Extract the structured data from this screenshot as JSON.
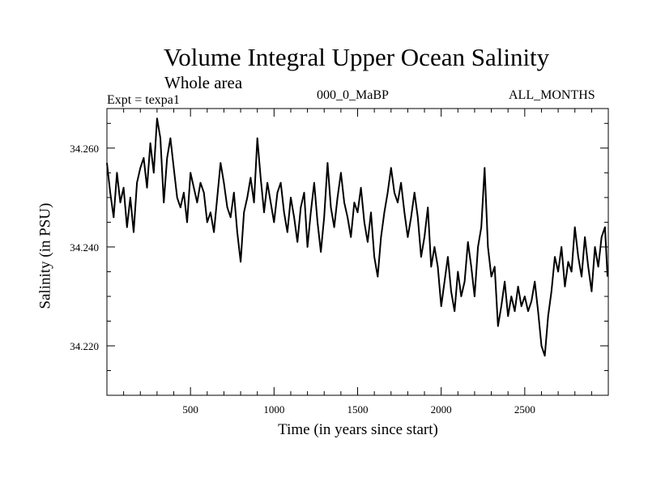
{
  "chart_data": {
    "type": "line",
    "title": "Volume Integral Upper Ocean Salinity",
    "subtitle": "Whole area",
    "annotations": {
      "experiment": "Expt = texpa1",
      "dataset": "000_0_MaBP",
      "period": "ALL_MONTHS"
    },
    "xlabel": "Time (in years since start)",
    "ylabel": "Salinity (in PSU)",
    "xlim": [
      0,
      3000
    ],
    "ylim": [
      34.21,
      34.268
    ],
    "xticks": [
      500,
      1000,
      1500,
      2000,
      2500
    ],
    "yticks": [
      34.22,
      34.24,
      34.26
    ],
    "ytick_labels": [
      "34.220",
      "34.240",
      "34.260"
    ],
    "grid": false,
    "line_color": "#000000",
    "series": [
      {
        "x": [
          0,
          20,
          40,
          60,
          80,
          100,
          120,
          140,
          160,
          180,
          200,
          220,
          240,
          260,
          280,
          300,
          320,
          340,
          360,
          380,
          400,
          420,
          440,
          460,
          480,
          500,
          520,
          540,
          560,
          580,
          600,
          620,
          640,
          660,
          680,
          700,
          720,
          740,
          760,
          780,
          800,
          820,
          840,
          860,
          880,
          900,
          920,
          940,
          960,
          980,
          1000,
          1020,
          1040,
          1060,
          1080,
          1100,
          1120,
          1140,
          1160,
          1180,
          1200,
          1220,
          1240,
          1260,
          1280,
          1300,
          1320,
          1340,
          1360,
          1380,
          1400,
          1420,
          1440,
          1460,
          1480,
          1500,
          1520,
          1540,
          1560,
          1580,
          1600,
          1620,
          1640,
          1660,
          1680,
          1700,
          1720,
          1740,
          1760,
          1780,
          1800,
          1820,
          1840,
          1860,
          1880,
          1900,
          1920,
          1940,
          1960,
          1980,
          2000,
          2020,
          2040,
          2060,
          2080,
          2100,
          2120,
          2140,
          2160,
          2180,
          2200,
          2220,
          2240,
          2260,
          2280,
          2300,
          2320,
          2340,
          2360,
          2380,
          2400,
          2420,
          2440,
          2460,
          2480,
          2500,
          2520,
          2540,
          2560,
          2580,
          2600,
          2620,
          2640,
          2660,
          2680,
          2700,
          2720,
          2740,
          2760,
          2780,
          2800,
          2820,
          2840,
          2860,
          2880,
          2900,
          2920,
          2940,
          2960,
          2980,
          2995
        ],
        "values": [
          34.257,
          34.251,
          34.246,
          34.255,
          34.249,
          34.252,
          34.244,
          34.25,
          34.243,
          34.253,
          34.256,
          34.258,
          34.252,
          34.261,
          34.255,
          34.266,
          34.262,
          34.249,
          34.258,
          34.262,
          34.256,
          34.25,
          34.248,
          34.251,
          34.245,
          34.255,
          34.252,
          34.249,
          34.253,
          34.251,
          34.245,
          34.247,
          34.243,
          34.25,
          34.257,
          34.253,
          34.248,
          34.246,
          34.251,
          34.243,
          34.237,
          34.247,
          34.25,
          34.254,
          34.249,
          34.262,
          34.254,
          34.247,
          34.253,
          34.249,
          34.245,
          34.251,
          34.253,
          34.247,
          34.243,
          34.25,
          34.246,
          34.241,
          34.248,
          34.251,
          34.24,
          34.247,
          34.253,
          34.245,
          34.239,
          34.246,
          34.257,
          34.248,
          34.244,
          34.25,
          34.255,
          34.249,
          34.246,
          34.242,
          34.249,
          34.247,
          34.252,
          34.245,
          34.241,
          34.247,
          34.238,
          34.234,
          34.242,
          34.247,
          34.251,
          34.256,
          34.251,
          34.249,
          34.253,
          34.247,
          34.242,
          34.246,
          34.251,
          34.246,
          34.238,
          34.242,
          34.248,
          34.236,
          34.24,
          34.236,
          34.228,
          34.233,
          34.238,
          34.231,
          34.227,
          34.235,
          34.23,
          34.233,
          34.241,
          34.236,
          34.23,
          34.24,
          34.244,
          34.256,
          34.24,
          34.234,
          34.236,
          34.224,
          34.228,
          34.233,
          34.226,
          34.23,
          34.227,
          34.232,
          34.228,
          34.23,
          34.227,
          34.229,
          34.233,
          34.227,
          34.22,
          34.218,
          34.226,
          34.231,
          34.238,
          34.235,
          34.24,
          34.232,
          34.237,
          34.235,
          34.244,
          34.238,
          34.234,
          34.242,
          34.236,
          34.231,
          34.24,
          34.236,
          34.242,
          34.244,
          34.234
        ]
      }
    ]
  }
}
